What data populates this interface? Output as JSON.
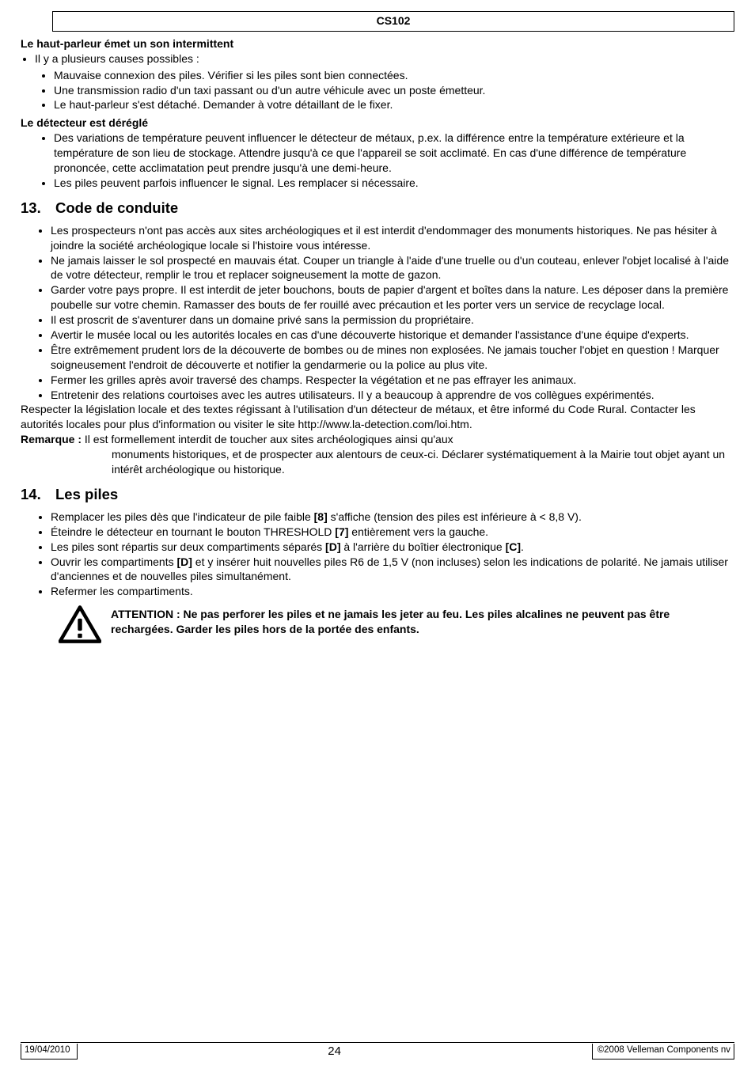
{
  "header": {
    "code": "CS102"
  },
  "section_a": {
    "title": "Le haut-parleur émet un son intermittent",
    "lead": "Il y a plusieurs causes possibles :",
    "items": [
      "Mauvaise connexion des piles. Vérifier si les piles sont bien connectées.",
      "Une transmission radio d'un taxi passant ou d'un autre véhicule avec un poste émetteur.",
      "Le haut-parleur s'est détaché. Demander à votre détaillant de le fixer."
    ]
  },
  "section_b": {
    "title": "Le détecteur est déréglé",
    "items": [
      "Des variations de température peuvent influencer le détecteur de métaux, p.ex. la différence entre la température extérieure et la température de son lieu de stockage. Attendre jusqu'à ce que l'appareil se soit acclimaté. En cas d'une différence de température prononcée, cette acclimatation peut prendre jusqu'à une demi-heure.",
      "Les piles peuvent parfois influencer le signal. Les remplacer si nécessaire."
    ]
  },
  "section13": {
    "num": "13.",
    "title": "Code de conduite",
    "items": [
      "Les prospecteurs n'ont pas accès aux sites archéologiques et il est interdit d'endommager des monuments historiques. Ne pas hésiter à joindre la société archéologique locale si l'histoire vous intéresse.",
      "Ne jamais laisser le sol prospecté en mauvais état. Couper un triangle à l'aide d'une truelle ou d'un couteau, enlever l'objet localisé à l'aide de votre détecteur, remplir le trou et replacer soigneusement la motte de gazon.",
      "Garder votre pays propre. Il est interdit de jeter bouchons, bouts de papier d'argent et boîtes dans la nature. Les déposer dans la première poubelle sur votre chemin. Ramasser des bouts de fer rouillé avec précaution et les porter vers un service de recyclage local.",
      "Il est proscrit de s'aventurer dans un domaine privé sans la permission du propriétaire.",
      "Avertir le musée local ou les autorités locales en cas d'une découverte historique et demander l'assistance d'une équipe d'experts.",
      "Être extrêmement prudent lors de la découverte de bombes ou de mines non explosées. Ne jamais toucher l'objet en question ! Marquer soigneusement l'endroit de découverte et notifier la gendarmerie ou la police au plus vite.",
      "Fermer les grilles après avoir traversé des champs. Respecter la végétation et ne pas effrayer les animaux.",
      "Entretenir des relations courtoises avec les autres utilisateurs. Il y a beaucoup à apprendre de vos collègues expérimentés."
    ],
    "para": "Respecter la législation locale et des textes régissant à l'utilisation d'un détecteur de métaux, et être informé du Code Rural. Contacter les autorités locales pour plus d'information ou visiter le site http://www.la-detection.com/loi.htm.",
    "remarque_label": "Remarque :",
    "remarque_first": " Il est formellement interdit de toucher aux sites archéologiques ainsi qu'aux",
    "remarque_cont": "monuments historiques, et de prospecter aux alentours de ceux-ci. Déclarer systématiquement à la Mairie tout objet ayant un intérêt archéologique ou historique."
  },
  "section14": {
    "num": "14.",
    "title": "Les piles",
    "items_html": [
      "Remplacer les piles dès que l'indicateur de pile faible <b>[8]</b> s'affiche (tension des piles est inférieure à &lt; 8,8 V).",
      "Éteindre le détecteur en tournant le bouton THRESHOLD <b>[7]</b> entièrement vers la gauche.",
      "Les piles sont répartis sur deux compartiments séparés <b>[D]</b> à l'arrière du boîtier électronique <b>[C]</b>.",
      "Ouvrir les compartiments <b>[D]</b> et y insérer huit nouvelles piles R6 de 1,5 V (non incluses) selon les indications de polarité. Ne jamais utiliser d'anciennes et de nouvelles piles simultanément.",
      "Refermer les compartiments."
    ],
    "warning": "ATTENTION : Ne pas perforer les piles et ne jamais les jeter au feu. Les piles alcalines ne peuvent pas être rechargées. Garder les piles hors de la portée des enfants."
  },
  "footer": {
    "date": "19/04/2010",
    "page": "24",
    "copyright": "©2008 Velleman Components nv"
  }
}
